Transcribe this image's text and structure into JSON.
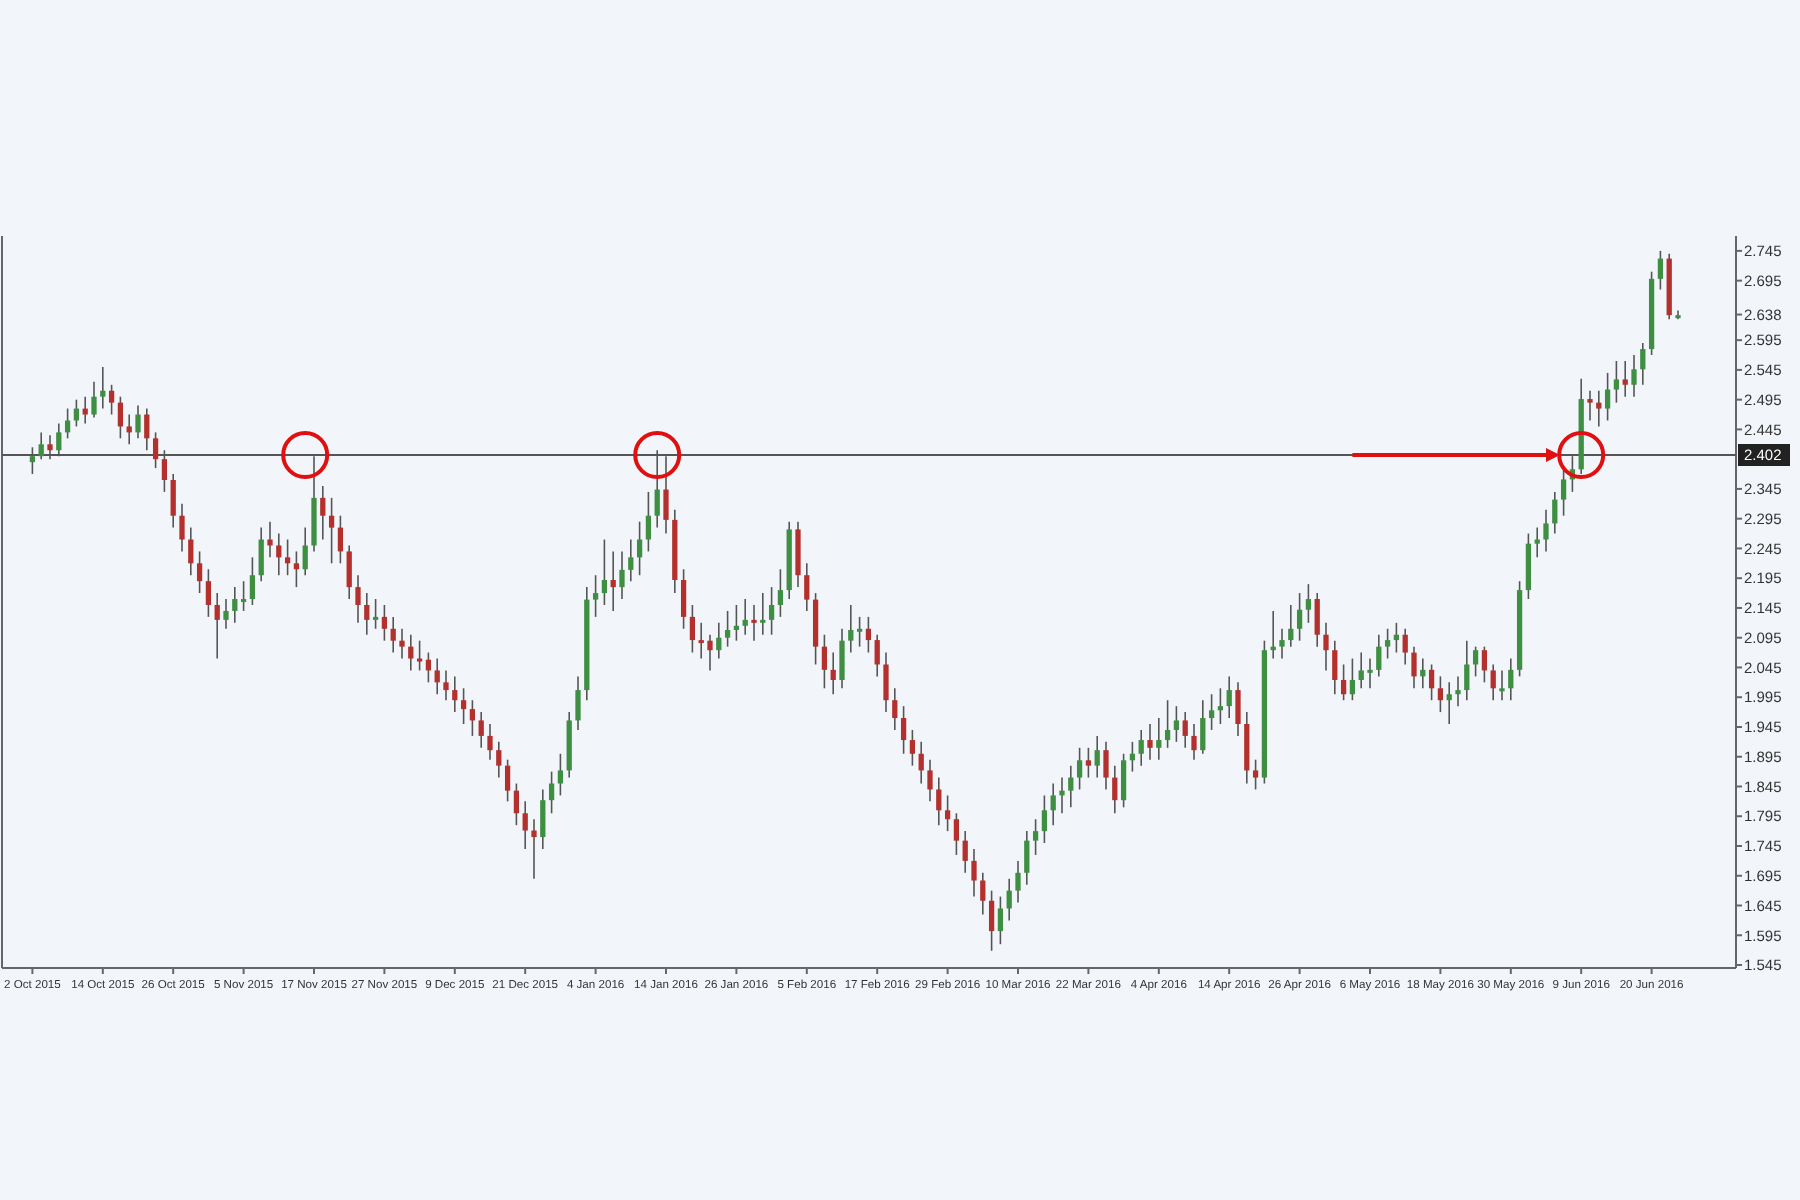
{
  "chart_data": {
    "type": "candlestick",
    "categories": [
      "2 Oct 2015",
      null,
      null,
      null,
      null,
      null,
      null,
      null,
      "14 Oct 2015",
      null,
      null,
      null,
      null,
      null,
      null,
      null,
      "26 Oct 2015",
      null,
      null,
      null,
      null,
      null,
      null,
      null,
      "5 Nov 2015",
      null,
      null,
      null,
      null,
      null,
      null,
      null,
      "17 Nov 2015",
      null,
      null,
      null,
      null,
      null,
      null,
      null,
      "27 Nov 2015",
      null,
      null,
      null,
      null,
      null,
      null,
      null,
      "9 Dec 2015",
      null,
      null,
      null,
      null,
      null,
      null,
      null,
      "21 Dec 2015",
      null,
      null,
      null,
      null,
      null,
      null,
      null,
      "4 Jan 2016",
      null,
      null,
      null,
      null,
      null,
      null,
      null,
      "14 Jan 2016",
      null,
      null,
      null,
      null,
      null,
      null,
      null,
      "26 Jan 2016",
      null,
      null,
      null,
      null,
      null,
      null,
      null,
      "5 Feb 2016",
      null,
      null,
      null,
      null,
      null,
      null,
      null,
      "17 Feb 2016",
      null,
      null,
      null,
      null,
      null,
      null,
      null,
      "29 Feb 2016",
      null,
      null,
      null,
      null,
      null,
      null,
      null,
      "10 Mar 2016",
      null,
      null,
      null,
      null,
      null,
      null,
      null,
      "22 Mar 2016",
      null,
      null,
      null,
      null,
      null,
      null,
      null,
      "4 Apr 2016",
      null,
      null,
      null,
      null,
      null,
      null,
      null,
      "14 Apr 2016",
      null,
      null,
      null,
      null,
      null,
      null,
      null,
      "26 Apr 2016",
      null,
      null,
      null,
      null,
      null,
      null,
      null,
      "6 May 2016",
      null,
      null,
      null,
      null,
      null,
      null,
      null,
      "18 May 2016",
      null,
      null,
      null,
      null,
      null,
      null,
      null,
      "30 May 2016",
      null,
      null,
      null,
      null,
      null,
      null,
      null,
      "9 Jun 2016",
      null,
      null,
      null,
      null,
      null,
      null,
      null,
      "20 Jun 2016",
      null,
      null,
      null
    ],
    "ohlc": [
      [
        2.39,
        2.415,
        2.37,
        2.4
      ],
      [
        2.4,
        2.44,
        2.395,
        2.42
      ],
      [
        2.42,
        2.435,
        2.395,
        2.41
      ],
      [
        2.41,
        2.455,
        2.4,
        2.44
      ],
      [
        2.44,
        2.48,
        2.43,
        2.46
      ],
      [
        2.46,
        2.495,
        2.45,
        2.48
      ],
      [
        2.48,
        2.5,
        2.455,
        2.47
      ],
      [
        2.47,
        2.525,
        2.465,
        2.5
      ],
      [
        2.5,
        2.55,
        2.48,
        2.51
      ],
      [
        2.51,
        2.52,
        2.47,
        2.49
      ],
      [
        2.49,
        2.5,
        2.43,
        2.45
      ],
      [
        2.45,
        2.47,
        2.42,
        2.44
      ],
      [
        2.44,
        2.485,
        2.43,
        2.47
      ],
      [
        2.47,
        2.48,
        2.41,
        2.43
      ],
      [
        2.43,
        2.44,
        2.38,
        2.395
      ],
      [
        2.395,
        2.41,
        2.34,
        2.36
      ],
      [
        2.36,
        2.37,
        2.28,
        2.3
      ],
      [
        2.3,
        2.32,
        2.24,
        2.26
      ],
      [
        2.26,
        2.28,
        2.2,
        2.22
      ],
      [
        2.22,
        2.24,
        2.17,
        2.19
      ],
      [
        2.19,
        2.21,
        2.13,
        2.15
      ],
      [
        2.15,
        2.17,
        2.06,
        2.125
      ],
      [
        2.125,
        2.16,
        2.11,
        2.14
      ],
      [
        2.14,
        2.18,
        2.12,
        2.16
      ],
      [
        2.16,
        2.19,
        2.14,
        2.16
      ],
      [
        2.16,
        2.23,
        2.15,
        2.2
      ],
      [
        2.2,
        2.28,
        2.19,
        2.26
      ],
      [
        2.26,
        2.29,
        2.23,
        2.25
      ],
      [
        2.25,
        2.27,
        2.2,
        2.23
      ],
      [
        2.23,
        2.26,
        2.2,
        2.22
      ],
      [
        2.22,
        2.24,
        2.18,
        2.21
      ],
      [
        2.21,
        2.28,
        2.2,
        2.25
      ],
      [
        2.25,
        2.4,
        2.24,
        2.33
      ],
      [
        2.33,
        2.35,
        2.26,
        2.3
      ],
      [
        2.3,
        2.33,
        2.22,
        2.28
      ],
      [
        2.28,
        2.3,
        2.22,
        2.24
      ],
      [
        2.24,
        2.25,
        2.16,
        2.18
      ],
      [
        2.18,
        2.2,
        2.12,
        2.15
      ],
      [
        2.15,
        2.17,
        2.1,
        2.125
      ],
      [
        2.125,
        2.16,
        2.11,
        2.13
      ],
      [
        2.13,
        2.15,
        2.09,
        2.11
      ],
      [
        2.11,
        2.13,
        2.07,
        2.09
      ],
      [
        2.09,
        2.11,
        2.06,
        2.08
      ],
      [
        2.08,
        2.1,
        2.04,
        2.06
      ],
      [
        2.06,
        2.09,
        2.04,
        2.058
      ],
      [
        2.058,
        2.07,
        2.02,
        2.04
      ],
      [
        2.04,
        2.06,
        2.0,
        2.02
      ],
      [
        2.02,
        2.04,
        1.99,
        2.007
      ],
      [
        2.007,
        2.03,
        1.97,
        1.99
      ],
      [
        1.99,
        2.01,
        1.95,
        1.975
      ],
      [
        1.975,
        1.99,
        1.93,
        1.956
      ],
      [
        1.956,
        1.97,
        1.91,
        1.93
      ],
      [
        1.93,
        1.95,
        1.89,
        1.906
      ],
      [
        1.906,
        1.92,
        1.86,
        1.88
      ],
      [
        1.88,
        1.89,
        1.82,
        1.838
      ],
      [
        1.838,
        1.85,
        1.78,
        1.8
      ],
      [
        1.8,
        1.82,
        1.74,
        1.771
      ],
      [
        1.771,
        1.79,
        1.69,
        1.76
      ],
      [
        1.76,
        1.84,
        1.74,
        1.822
      ],
      [
        1.822,
        1.87,
        1.8,
        1.85
      ],
      [
        1.85,
        1.9,
        1.83,
        1.872
      ],
      [
        1.872,
        1.97,
        1.86,
        1.956
      ],
      [
        1.956,
        2.03,
        1.94,
        2.007
      ],
      [
        2.007,
        2.18,
        1.99,
        2.159
      ],
      [
        2.159,
        2.2,
        2.13,
        2.17
      ],
      [
        2.17,
        2.26,
        2.15,
        2.192
      ],
      [
        2.192,
        2.24,
        2.14,
        2.18
      ],
      [
        2.18,
        2.24,
        2.16,
        2.209
      ],
      [
        2.209,
        2.26,
        2.19,
        2.23
      ],
      [
        2.23,
        2.29,
        2.2,
        2.26
      ],
      [
        2.26,
        2.34,
        2.24,
        2.3
      ],
      [
        2.3,
        2.41,
        2.28,
        2.344
      ],
      [
        2.344,
        2.4,
        2.27,
        2.293
      ],
      [
        2.293,
        2.31,
        2.17,
        2.192
      ],
      [
        2.192,
        2.21,
        2.11,
        2.13
      ],
      [
        2.13,
        2.15,
        2.07,
        2.091
      ],
      [
        2.091,
        2.12,
        2.06,
        2.09
      ],
      [
        2.09,
        2.1,
        2.04,
        2.074
      ],
      [
        2.074,
        2.12,
        2.06,
        2.095
      ],
      [
        2.095,
        2.14,
        2.08,
        2.108
      ],
      [
        2.108,
        2.15,
        2.09,
        2.115
      ],
      [
        2.115,
        2.16,
        2.1,
        2.125
      ],
      [
        2.125,
        2.15,
        2.09,
        2.12
      ],
      [
        2.12,
        2.17,
        2.1,
        2.125
      ],
      [
        2.125,
        2.18,
        2.1,
        2.15
      ],
      [
        2.15,
        2.21,
        2.13,
        2.175
      ],
      [
        2.175,
        2.29,
        2.16,
        2.277
      ],
      [
        2.277,
        2.29,
        2.18,
        2.2
      ],
      [
        2.2,
        2.22,
        2.14,
        2.159
      ],
      [
        2.159,
        2.17,
        2.05,
        2.08
      ],
      [
        2.08,
        2.1,
        2.01,
        2.041
      ],
      [
        2.041,
        2.07,
        2.0,
        2.024
      ],
      [
        2.024,
        2.11,
        2.01,
        2.09
      ],
      [
        2.09,
        2.15,
        2.07,
        2.108
      ],
      [
        2.108,
        2.13,
        2.08,
        2.11
      ],
      [
        2.11,
        2.13,
        2.07,
        2.091
      ],
      [
        2.091,
        2.1,
        2.03,
        2.05
      ],
      [
        2.05,
        2.07,
        1.97,
        1.99
      ],
      [
        1.99,
        2.01,
        1.94,
        1.96
      ],
      [
        1.96,
        1.98,
        1.9,
        1.923
      ],
      [
        1.923,
        1.94,
        1.88,
        1.9
      ],
      [
        1.9,
        1.92,
        1.85,
        1.872
      ],
      [
        1.872,
        1.89,
        1.82,
        1.84
      ],
      [
        1.84,
        1.86,
        1.78,
        1.805
      ],
      [
        1.805,
        1.83,
        1.77,
        1.79
      ],
      [
        1.79,
        1.8,
        1.73,
        1.754
      ],
      [
        1.754,
        1.77,
        1.7,
        1.72
      ],
      [
        1.72,
        1.74,
        1.66,
        1.687
      ],
      [
        1.687,
        1.7,
        1.63,
        1.653
      ],
      [
        1.653,
        1.67,
        1.569,
        1.602
      ],
      [
        1.602,
        1.66,
        1.58,
        1.64
      ],
      [
        1.64,
        1.69,
        1.62,
        1.67
      ],
      [
        1.67,
        1.72,
        1.65,
        1.7
      ],
      [
        1.7,
        1.77,
        1.68,
        1.754
      ],
      [
        1.754,
        1.79,
        1.73,
        1.77
      ],
      [
        1.77,
        1.83,
        1.75,
        1.805
      ],
      [
        1.805,
        1.85,
        1.78,
        1.83
      ],
      [
        1.83,
        1.86,
        1.8,
        1.838
      ],
      [
        1.838,
        1.88,
        1.81,
        1.86
      ],
      [
        1.86,
        1.91,
        1.84,
        1.889
      ],
      [
        1.889,
        1.91,
        1.86,
        1.88
      ],
      [
        1.88,
        1.93,
        1.86,
        1.906
      ],
      [
        1.906,
        1.92,
        1.84,
        1.86
      ],
      [
        1.86,
        1.88,
        1.8,
        1.822
      ],
      [
        1.822,
        1.9,
        1.81,
        1.889
      ],
      [
        1.889,
        1.92,
        1.87,
        1.9
      ],
      [
        1.9,
        1.94,
        1.88,
        1.923
      ],
      [
        1.923,
        1.95,
        1.89,
        1.91
      ],
      [
        1.91,
        1.96,
        1.89,
        1.923
      ],
      [
        1.923,
        1.99,
        1.91,
        1.94
      ],
      [
        1.94,
        1.98,
        1.92,
        1.956
      ],
      [
        1.956,
        1.97,
        1.91,
        1.93
      ],
      [
        1.93,
        1.95,
        1.89,
        1.906
      ],
      [
        1.906,
        1.99,
        1.9,
        1.96
      ],
      [
        1.96,
        2.0,
        1.94,
        1.973
      ],
      [
        1.973,
        2.01,
        1.95,
        1.98
      ],
      [
        1.98,
        2.03,
        1.96,
        2.007
      ],
      [
        2.007,
        2.02,
        1.93,
        1.95
      ],
      [
        1.95,
        1.97,
        1.85,
        1.872
      ],
      [
        1.872,
        1.89,
        1.84,
        1.86
      ],
      [
        1.86,
        2.09,
        1.85,
        2.074
      ],
      [
        2.074,
        2.14,
        2.06,
        2.08
      ],
      [
        2.08,
        2.11,
        2.06,
        2.091
      ],
      [
        2.091,
        2.15,
        2.08,
        2.11
      ],
      [
        2.11,
        2.17,
        2.09,
        2.142
      ],
      [
        2.142,
        2.185,
        2.12,
        2.16
      ],
      [
        2.16,
        2.17,
        2.08,
        2.1
      ],
      [
        2.1,
        2.12,
        2.04,
        2.074
      ],
      [
        2.074,
        2.09,
        2.0,
        2.024
      ],
      [
        2.024,
        2.05,
        1.99,
        2.0
      ],
      [
        2.0,
        2.06,
        1.99,
        2.024
      ],
      [
        2.024,
        2.07,
        2.01,
        2.04
      ],
      [
        2.04,
        2.06,
        2.01,
        2.041
      ],
      [
        2.041,
        2.1,
        2.03,
        2.08
      ],
      [
        2.08,
        2.11,
        2.06,
        2.091
      ],
      [
        2.091,
        2.12,
        2.07,
        2.1
      ],
      [
        2.1,
        2.11,
        2.05,
        2.07
      ],
      [
        2.07,
        2.08,
        2.01,
        2.03
      ],
      [
        2.03,
        2.06,
        2.01,
        2.041
      ],
      [
        2.041,
        2.05,
        1.99,
        2.01
      ],
      [
        2.01,
        2.03,
        1.97,
        1.99
      ],
      [
        1.99,
        2.02,
        1.95,
        2.0
      ],
      [
        2.0,
        2.03,
        1.98,
        2.007
      ],
      [
        2.007,
        2.09,
        1.99,
        2.05
      ],
      [
        2.05,
        2.08,
        2.03,
        2.074
      ],
      [
        2.074,
        2.08,
        2.02,
        2.04
      ],
      [
        2.04,
        2.05,
        1.99,
        2.01
      ],
      [
        2.01,
        2.04,
        1.99,
        2.01
      ],
      [
        2.01,
        2.06,
        1.99,
        2.041
      ],
      [
        2.041,
        2.19,
        2.03,
        2.175
      ],
      [
        2.175,
        2.27,
        2.16,
        2.253
      ],
      [
        2.253,
        2.28,
        2.23,
        2.26
      ],
      [
        2.26,
        2.31,
        2.24,
        2.287
      ],
      [
        2.287,
        2.34,
        2.27,
        2.327
      ],
      [
        2.327,
        2.38,
        2.3,
        2.361
      ],
      [
        2.361,
        2.4,
        2.34,
        2.378
      ],
      [
        2.378,
        2.53,
        2.37,
        2.496
      ],
      [
        2.496,
        2.51,
        2.46,
        2.49
      ],
      [
        2.49,
        2.51,
        2.45,
        2.48
      ],
      [
        2.48,
        2.54,
        2.46,
        2.512
      ],
      [
        2.512,
        2.56,
        2.49,
        2.529
      ],
      [
        2.529,
        2.56,
        2.5,
        2.52
      ],
      [
        2.52,
        2.57,
        2.5,
        2.546
      ],
      [
        2.546,
        2.59,
        2.52,
        2.58
      ],
      [
        2.58,
        2.71,
        2.57,
        2.698
      ],
      [
        2.698,
        2.745,
        2.68,
        2.732
      ],
      [
        2.732,
        2.74,
        2.63,
        2.637
      ],
      [
        2.637,
        2.645,
        2.63,
        2.637
      ]
    ],
    "ylim": [
      1.54,
      2.77
    ],
    "yticks": [
      2.745,
      2.695,
      2.638,
      2.595,
      2.545,
      2.495,
      2.445,
      2.345,
      2.295,
      2.245,
      2.195,
      2.145,
      2.095,
      2.045,
      1.995,
      1.945,
      1.895,
      1.845,
      1.795,
      1.745,
      1.695,
      1.645,
      1.595,
      1.545
    ],
    "ref_lines": [
      {
        "axis": "y",
        "value": 2.402,
        "label": "2.402",
        "color": "#555555"
      }
    ]
  }
}
